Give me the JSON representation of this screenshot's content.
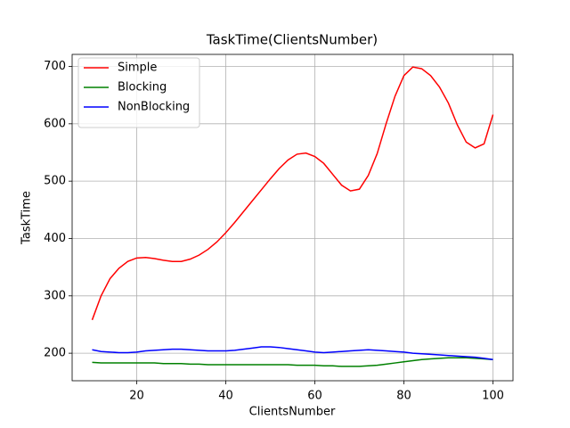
{
  "chart_data": {
    "type": "line",
    "title": "TaskTime(ClientsNumber)",
    "x_label": "ClientsNumber",
    "y_label": "TaskTime",
    "x": [
      10,
      12,
      14,
      16,
      18,
      20,
      22,
      24,
      26,
      28,
      30,
      32,
      34,
      36,
      38,
      40,
      42,
      44,
      46,
      48,
      50,
      52,
      54,
      56,
      58,
      60,
      62,
      64,
      66,
      68,
      70,
      72,
      74,
      76,
      78,
      80,
      82,
      84,
      86,
      88,
      90,
      92,
      94,
      96,
      98,
      100
    ],
    "series": [
      {
        "name": "Simple",
        "color": "#ff0000",
        "values": [
          258,
          300,
          330,
          348,
          360,
          366,
          367,
          365,
          362,
          360,
          360,
          364,
          371,
          381,
          394,
          410,
          428,
          447,
          466,
          485,
          504,
          522,
          537,
          547,
          549,
          543,
          531,
          512,
          493,
          483,
          486,
          510,
          548,
          600,
          648,
          684,
          699,
          696,
          684,
          664,
          636,
          598,
          568,
          558,
          565,
          616
        ]
      },
      {
        "name": "Blocking",
        "color": "#008000",
        "values": [
          184,
          183,
          183,
          183,
          183,
          183,
          183,
          183,
          182,
          182,
          182,
          181,
          181,
          180,
          180,
          180,
          180,
          180,
          180,
          180,
          180,
          180,
          180,
          179,
          179,
          179,
          178,
          178,
          177,
          177,
          177,
          178,
          179,
          181,
          183,
          185,
          187,
          189,
          190,
          191,
          192,
          192,
          192,
          191,
          190,
          189
        ]
      },
      {
        "name": "NonBlocking",
        "color": "#0000ff",
        "values": [
          206,
          203,
          202,
          201,
          201,
          202,
          204,
          205,
          206,
          207,
          207,
          206,
          205,
          204,
          204,
          204,
          205,
          207,
          209,
          211,
          211,
          210,
          208,
          206,
          204,
          202,
          201,
          202,
          203,
          204,
          205,
          206,
          205,
          204,
          203,
          202,
          200,
          199,
          198,
          197,
          196,
          195,
          194,
          193,
          191,
          189
        ]
      }
    ],
    "xlim": [
      5.5,
      104.5
    ],
    "ylim": [
      152,
      721
    ],
    "xticks": [
      20,
      40,
      60,
      80,
      100
    ],
    "yticks": [
      200,
      300,
      400,
      500,
      600,
      700
    ],
    "grid": true,
    "legend": "upper left"
  }
}
